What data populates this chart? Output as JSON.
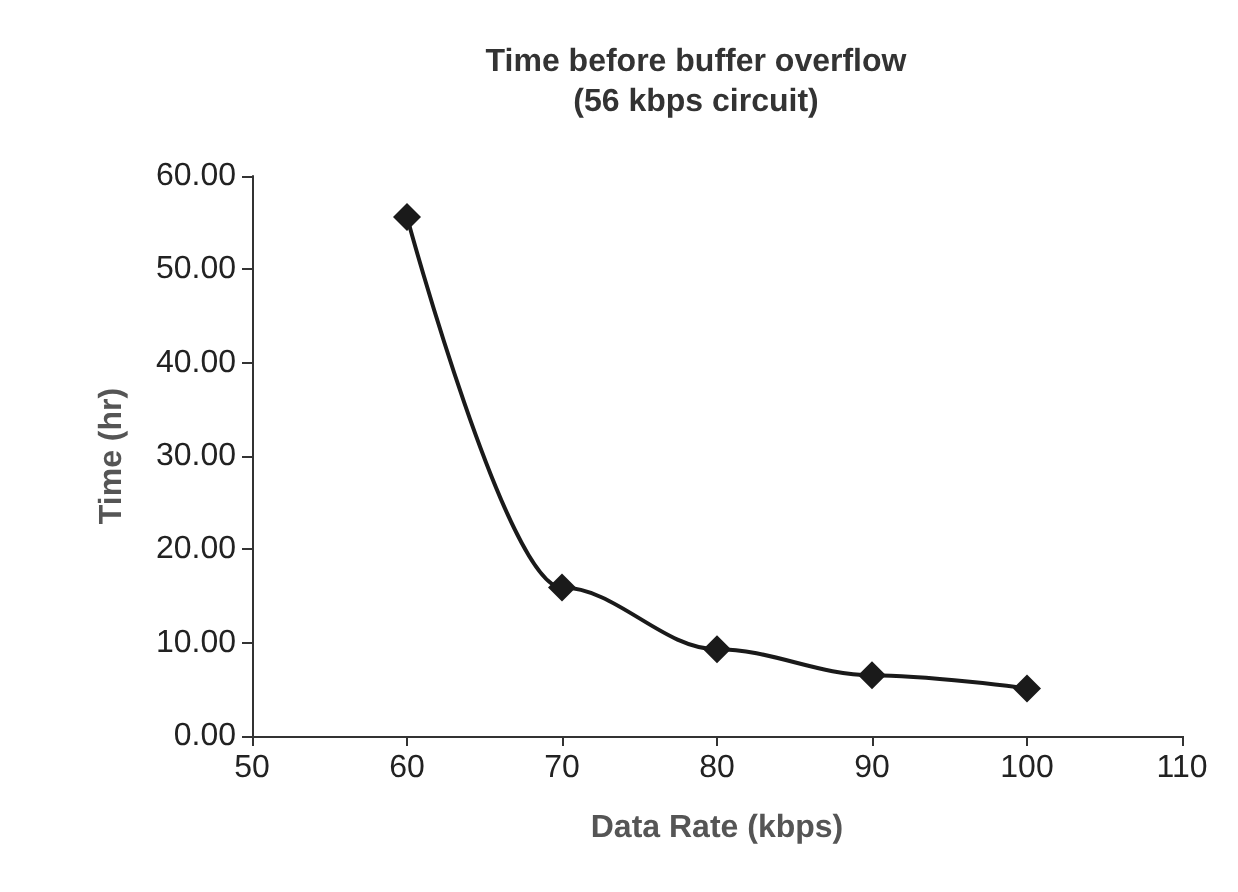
{
  "chart_data": {
    "type": "line",
    "title": "Time before buffer overflow\n(56 kbps circuit)",
    "xlabel": "Data Rate (kbps)",
    "ylabel": "Time (hr)",
    "x": [
      60,
      70,
      80,
      90,
      100
    ],
    "series": [
      {
        "color": "#1a1a1a",
        "values": [
          55.6,
          15.9,
          9.3,
          6.5,
          5.1
        ]
      }
    ],
    "xlim": [
      50,
      110
    ],
    "xticks": [
      50,
      60,
      70,
      80,
      90,
      100,
      110
    ],
    "ylim": [
      0,
      60
    ],
    "yticks": [
      {
        "value": 0,
        "label": "0.00"
      },
      {
        "value": 10,
        "label": "10.00"
      },
      {
        "value": 20,
        "label": "20.00"
      },
      {
        "value": 30,
        "label": "30.00"
      },
      {
        "value": 40,
        "label": "40.00"
      },
      {
        "value": 50,
        "label": "50.00"
      },
      {
        "value": 60,
        "label": "60.00"
      }
    ],
    "grid": false,
    "marker": "diamond",
    "line_style": "solid"
  }
}
